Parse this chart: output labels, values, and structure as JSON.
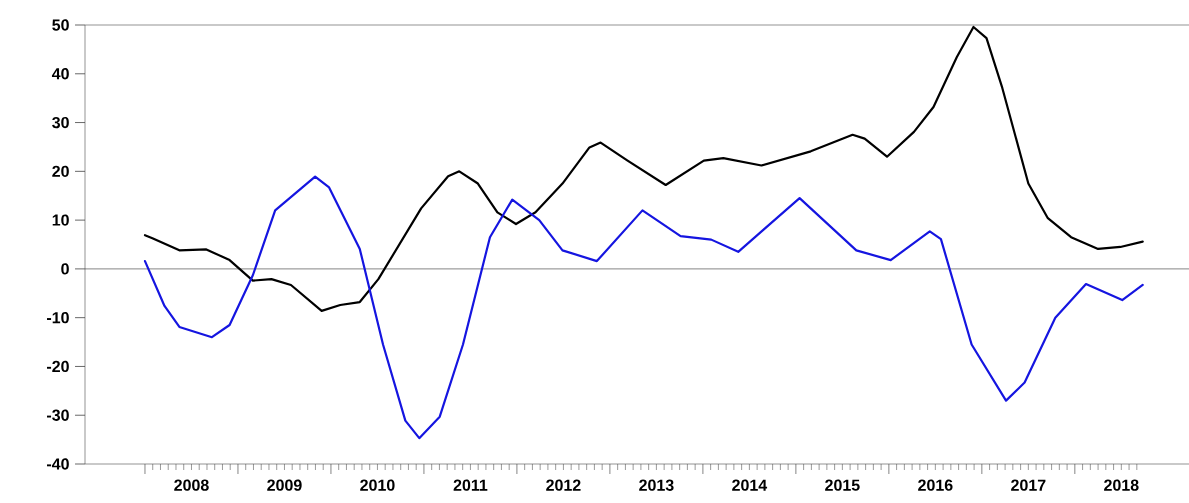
{
  "chart_data": {
    "type": "line",
    "x": [
      2008.0,
      2008.08,
      2008.37,
      2008.66,
      2008.91,
      2009.16,
      2009.36,
      2009.57,
      2009.9,
      2010.1,
      2010.31,
      2010.51,
      2010.97,
      2011.26,
      2011.38,
      2011.58,
      2011.79,
      2011.99,
      2012.2,
      2012.49,
      2012.78,
      2012.9,
      2013.19,
      2013.6,
      2014.01,
      2014.22,
      2014.63,
      2015.16,
      2015.61,
      2015.74,
      2015.98,
      2016.27,
      2016.48,
      2016.73,
      2016.91,
      2017.05,
      2017.22,
      2017.5,
      2017.71,
      2017.96,
      2018.25,
      2018.49,
      2018.73
    ],
    "series": [
      {
        "color": "#000000",
        "values": [
          6.9,
          6.3,
          3.8,
          4.0,
          1.8,
          -2.4,
          -2.1,
          -3.3,
          -8.6,
          -7.4,
          -6.8,
          -2.1,
          12.4,
          19.0,
          20.0,
          17.5,
          11.6,
          9.2,
          11.6,
          17.5,
          24.9,
          25.9,
          22.2,
          17.2,
          22.2,
          22.7,
          21.2,
          24.1,
          27.5,
          26.7,
          23.0,
          28.1,
          33.2,
          43.4,
          49.6,
          47.3,
          37.1,
          17.5,
          10.4,
          6.5,
          4.1,
          4.5,
          5.6
        ]
      },
      {
        "color": "#1515e0",
        "x": [
          2008.0,
          2008.21,
          2008.37,
          2008.72,
          2008.91,
          2009.16,
          2009.4,
          2009.83,
          2009.98,
          2010.31,
          2010.56,
          2010.8,
          2010.95,
          2011.17,
          2011.42,
          2011.71,
          2011.95,
          2012.24,
          2012.49,
          2012.86,
          2013.35,
          2013.76,
          2014.09,
          2014.38,
          2015.04,
          2015.65,
          2016.02,
          2016.44,
          2016.56,
          2016.89,
          2017.26,
          2017.46,
          2017.79,
          2018.12,
          2018.51,
          2018.73
        ],
        "values": [
          1.6,
          -7.6,
          -11.9,
          -14.0,
          -11.5,
          -1.3,
          12.0,
          18.9,
          16.7,
          4.1,
          -15.5,
          -31.1,
          -34.7,
          -30.3,
          -15.5,
          6.5,
          14.2,
          10.0,
          3.8,
          1.6,
          12.0,
          6.7,
          6.0,
          3.5,
          14.5,
          3.8,
          1.8,
          7.7,
          6.1,
          -15.5,
          -27.0,
          -23.3,
          -10.0,
          -3.1,
          -6.4,
          -3.3
        ]
      }
    ],
    "xlim": [
      2007.355,
      2019.26
    ],
    "ylim": [
      -40,
      50
    ],
    "yticks": [
      -40,
      -30,
      -20,
      -10,
      0,
      10,
      20,
      30,
      40,
      50
    ],
    "xticks": [
      {
        "value": 2008,
        "label": null
      },
      {
        "value": 2008.5,
        "label": "2008"
      },
      {
        "value": 2009,
        "label": null
      },
      {
        "value": 2009.5,
        "label": "2009"
      },
      {
        "value": 2010,
        "label": null
      },
      {
        "value": 2010.5,
        "label": "2010"
      },
      {
        "value": 2011,
        "label": null
      },
      {
        "value": 2011.5,
        "label": "2011"
      },
      {
        "value": 2012,
        "label": null
      },
      {
        "value": 2012.5,
        "label": "2012"
      },
      {
        "value": 2013,
        "label": null
      },
      {
        "value": 2013.5,
        "label": "2013"
      },
      {
        "value": 2014,
        "label": null
      },
      {
        "value": 2014.5,
        "label": "2014"
      },
      {
        "value": 2015,
        "label": null
      },
      {
        "value": 2015.5,
        "label": "2015"
      },
      {
        "value": 2016,
        "label": null
      },
      {
        "value": 2016.5,
        "label": "2016"
      },
      {
        "value": 2017,
        "label": null
      },
      {
        "value": 2017.5,
        "label": "2017"
      },
      {
        "value": 2018,
        "label": null
      },
      {
        "value": 2018.5,
        "label": "2018"
      }
    ],
    "ref_lines": [
      {
        "axis": "y",
        "value": 0,
        "color": "#333333"
      }
    ],
    "line_style": "solid",
    "marker": "none"
  }
}
